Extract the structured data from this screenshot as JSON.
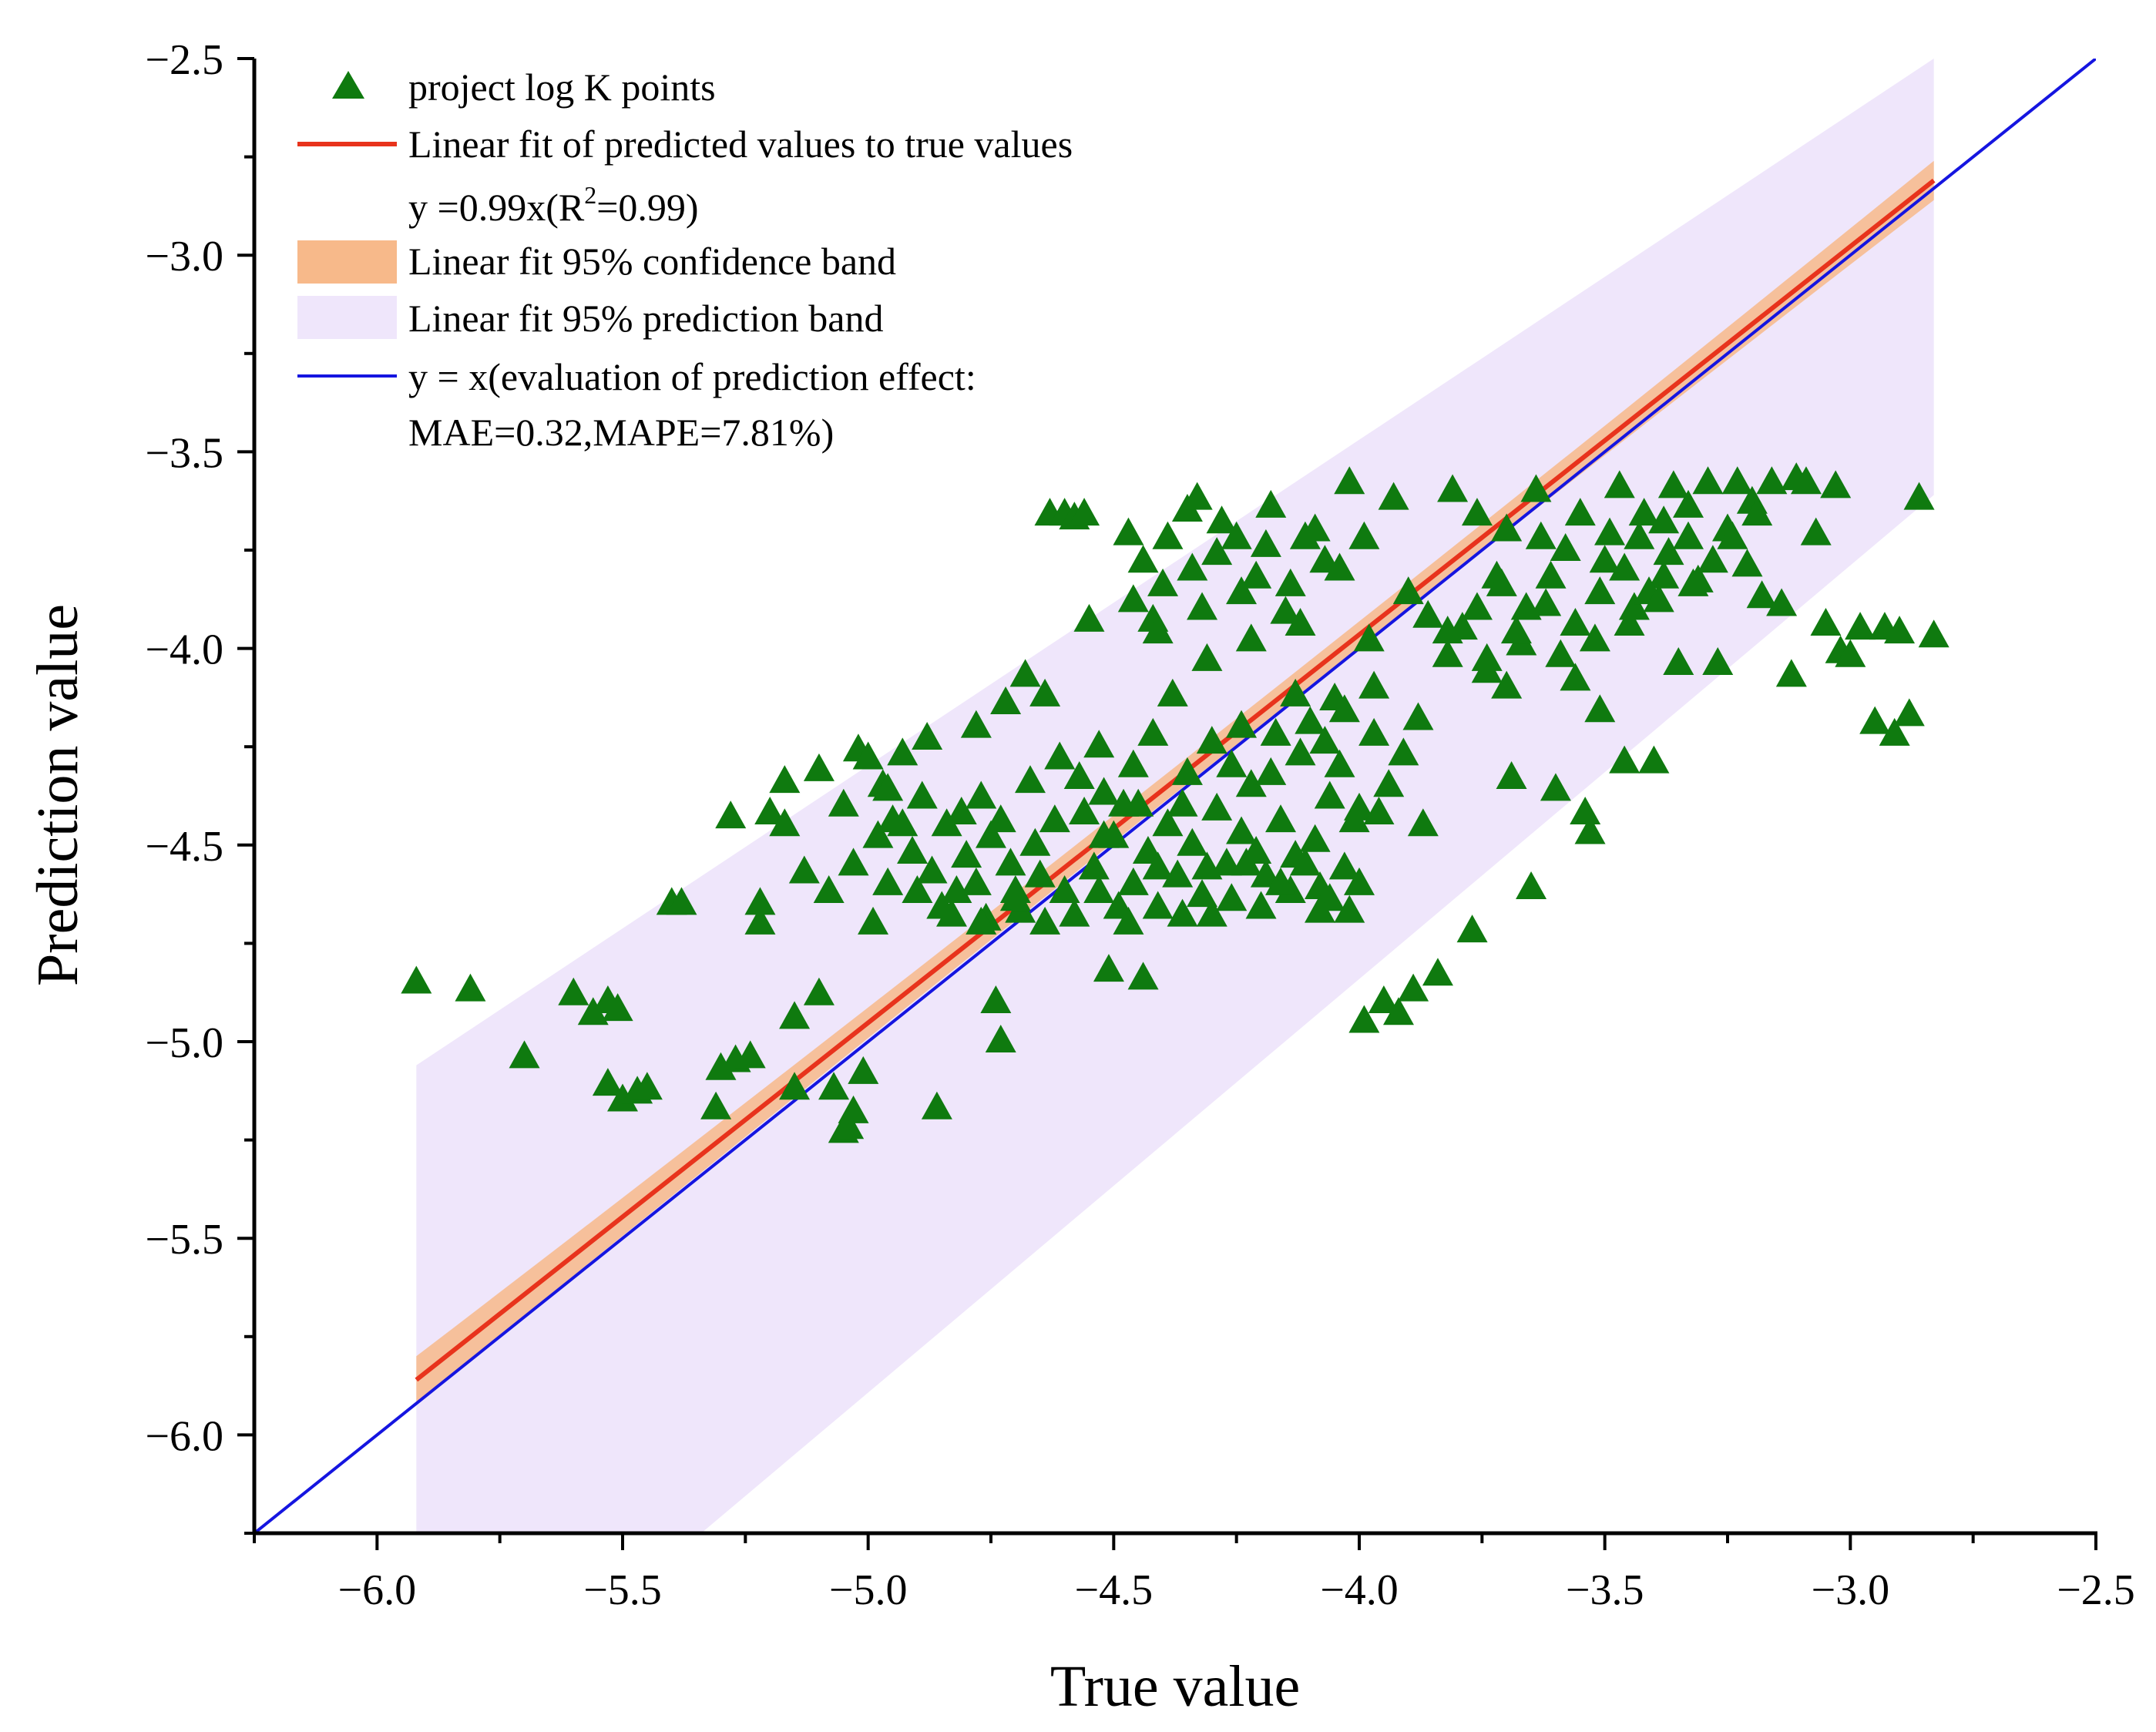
{
  "chart_data": {
    "type": "scatter",
    "xlabel": "True value",
    "ylabel": "Prediction value",
    "xlim": [
      -6.25,
      -2.5
    ],
    "ylim": [
      -6.25,
      -2.5
    ],
    "x_ticks": [
      -6.0,
      -5.5,
      -5.0,
      -4.5,
      -4.0,
      -3.5,
      -3.0,
      -2.5
    ],
    "y_ticks": [
      -2.5,
      -3.0,
      -3.5,
      -4.0,
      -4.5,
      -5.0,
      -5.5,
      -6.0
    ],
    "x_tick_labels": [
      "−6.0",
      "−5.5",
      "−5.0",
      "−4.5",
      "−4.0",
      "−3.5",
      "−3.0",
      "−2.5"
    ],
    "y_tick_labels": [
      "−2.5",
      "−3.0",
      "−3.5",
      "−4.0",
      "−4.5",
      "−5.0",
      "−5.5",
      "−6.0"
    ],
    "fit": {
      "slope": 0.99,
      "x_start": -5.92,
      "y_start": -5.86,
      "x_end": -2.83,
      "y_end": -2.81
    },
    "confidence_band_halfwidth": [
      0.06,
      0.012,
      0.05
    ],
    "prediction_band": {
      "x_range": [
        -5.92,
        -2.83
      ],
      "upper": [
        -5.06,
        -2.5
      ],
      "lower": [
        -6.86,
        -3.61
      ]
    },
    "identity_line": [
      [
        -6.25,
        -6.25
      ],
      [
        -2.5,
        -2.5
      ]
    ],
    "legend": {
      "points": "project log K points",
      "fit_line": "Linear fit of predicted values to true values",
      "fit_eq_prefix": "y =0.99x(R",
      "fit_eq_sup": "2",
      "fit_eq_suffix": "=0.99)",
      "confidence": "Linear fit 95% confidence band",
      "prediction": "Linear fit 95% prediction band",
      "identity": "y = x(evaluation of prediction effect:",
      "identity_line2": "MAE=0.32,MAPE=7.81%)"
    },
    "colors": {
      "points": "#0f7a0f",
      "fit_line": "#e8331c",
      "confidence": "#f7b98a",
      "prediction": "#efe6fb",
      "identity": "#1515e0"
    },
    "points": [
      [
        -5.92,
        -4.85
      ],
      [
        -5.81,
        -4.87
      ],
      [
        -5.7,
        -5.04
      ],
      [
        -5.6,
        -4.88
      ],
      [
        -5.56,
        -4.93
      ],
      [
        -5.53,
        -4.9
      ],
      [
        -5.51,
        -4.92
      ],
      [
        -5.53,
        -5.11
      ],
      [
        -5.5,
        -5.15
      ],
      [
        -5.47,
        -5.13
      ],
      [
        -5.45,
        -5.12
      ],
      [
        -5.4,
        -4.65
      ],
      [
        -5.38,
        -4.65
      ],
      [
        -5.3,
        -5.07
      ],
      [
        -5.27,
        -5.05
      ],
      [
        -5.24,
        -5.04
      ],
      [
        -5.31,
        -5.17
      ],
      [
        -5.28,
        -4.43
      ],
      [
        -5.22,
        -4.65
      ],
      [
        -5.22,
        -4.7
      ],
      [
        -5.2,
        -4.42
      ],
      [
        -5.17,
        -4.45
      ],
      [
        -5.17,
        -4.34
      ],
      [
        -5.15,
        -5.12
      ],
      [
        -5.15,
        -4.94
      ],
      [
        -5.13,
        -4.57
      ],
      [
        -5.1,
        -4.88
      ],
      [
        -5.1,
        -4.31
      ],
      [
        -5.08,
        -4.62
      ],
      [
        -5.07,
        -5.12
      ],
      [
        -5.05,
        -5.23
      ],
      [
        -5.04,
        -5.22
      ],
      [
        -5.03,
        -5.18
      ],
      [
        -5.02,
        -4.26
      ],
      [
        -5.0,
        -4.28
      ],
      [
        -5.01,
        -5.08
      ],
      [
        -4.99,
        -4.7
      ],
      [
        -4.97,
        -4.35
      ],
      [
        -4.95,
        -4.44
      ],
      [
        -4.93,
        -4.27
      ],
      [
        -4.9,
        -4.62
      ],
      [
        -4.88,
        -4.23
      ],
      [
        -4.86,
        -5.17
      ],
      [
        -4.83,
        -4.68
      ],
      [
        -4.81,
        -4.42
      ],
      [
        -4.78,
        -4.2
      ],
      [
        -4.76,
        -4.69
      ],
      [
        -4.74,
        -4.9
      ],
      [
        -4.73,
        -5.0
      ],
      [
        -4.72,
        -4.14
      ],
      [
        -4.7,
        -4.62
      ],
      [
        -4.68,
        -4.07
      ],
      [
        -4.66,
        -4.5
      ],
      [
        -4.64,
        -4.12
      ],
      [
        -4.63,
        -3.66
      ],
      [
        -4.6,
        -3.66
      ],
      [
        -4.58,
        -3.67
      ],
      [
        -4.56,
        -3.66
      ],
      [
        -4.55,
        -3.93
      ],
      [
        -4.53,
        -4.25
      ],
      [
        -4.52,
        -4.48
      ],
      [
        -4.51,
        -4.82
      ],
      [
        -4.49,
        -4.66
      ],
      [
        -4.47,
        -3.71
      ],
      [
        -4.45,
        -4.4
      ],
      [
        -4.44,
        -4.84
      ],
      [
        -4.42,
        -3.93
      ],
      [
        -4.4,
        -3.84
      ],
      [
        -4.38,
        -4.12
      ],
      [
        -4.36,
        -4.4
      ],
      [
        -4.35,
        -3.65
      ],
      [
        -4.33,
        -3.62
      ],
      [
        -4.31,
        -4.03
      ],
      [
        -4.3,
        -4.68
      ],
      [
        -4.28,
        -3.68
      ],
      [
        -4.26,
        -4.3
      ],
      [
        -4.25,
        -3.72
      ],
      [
        -4.23,
        -4.55
      ],
      [
        -4.21,
        -3.82
      ],
      [
        -4.2,
        -4.66
      ],
      [
        -4.18,
        -3.64
      ],
      [
        -4.17,
        -4.22
      ],
      [
        -4.15,
        -3.91
      ],
      [
        -4.13,
        -4.53
      ],
      [
        -4.11,
        -3.72
      ],
      [
        -4.1,
        -4.19
      ],
      [
        -4.08,
        -4.61
      ],
      [
        -4.07,
        -3.78
      ],
      [
        -4.05,
        -4.13
      ],
      [
        -4.03,
        -4.56
      ],
      [
        -4.02,
        -3.58
      ],
      [
        -4.0,
        -4.41
      ],
      [
        -3.99,
        -4.95
      ],
      [
        -3.98,
        -3.98
      ],
      [
        -3.96,
        -4.42
      ],
      [
        -3.95,
        -4.9
      ],
      [
        -3.93,
        -3.62
      ],
      [
        -3.92,
        -4.93
      ],
      [
        -3.9,
        -3.86
      ],
      [
        -3.89,
        -4.87
      ],
      [
        -3.87,
        -4.45
      ],
      [
        -3.86,
        -3.92
      ],
      [
        -3.84,
        -4.83
      ],
      [
        -3.82,
        -4.02
      ],
      [
        -3.81,
        -3.6
      ],
      [
        -3.79,
        -3.95
      ],
      [
        -3.77,
        -4.72
      ],
      [
        -3.76,
        -3.66
      ],
      [
        -3.74,
        -4.03
      ],
      [
        -3.72,
        -3.82
      ],
      [
        -3.7,
        -4.1
      ],
      [
        -3.69,
        -4.33
      ],
      [
        -3.67,
        -3.99
      ],
      [
        -3.65,
        -4.61
      ],
      [
        -3.64,
        -3.6
      ],
      [
        -3.62,
        -3.89
      ],
      [
        -3.6,
        -4.36
      ],
      [
        -3.58,
        -3.75
      ],
      [
        -3.56,
        -4.08
      ],
      [
        -3.54,
        -4.42
      ],
      [
        -3.53,
        -4.47
      ],
      [
        -3.51,
        -4.16
      ],
      [
        -3.49,
        -3.71
      ],
      [
        -3.47,
        -3.59
      ],
      [
        -3.46,
        -4.29
      ],
      [
        -3.44,
        -3.9
      ],
      [
        -3.42,
        -3.66
      ],
      [
        -3.4,
        -4.29
      ],
      [
        -3.38,
        -3.82
      ],
      [
        -3.36,
        -3.59
      ],
      [
        -3.35,
        -4.04
      ],
      [
        -3.33,
        -3.72
      ],
      [
        -3.31,
        -3.83
      ],
      [
        -3.29,
        -3.58
      ],
      [
        -3.27,
        -4.04
      ],
      [
        -3.25,
        -3.7
      ],
      [
        -3.23,
        -3.58
      ],
      [
        -3.21,
        -3.79
      ],
      [
        -3.2,
        -3.63
      ],
      [
        -3.18,
        -3.87
      ],
      [
        -3.16,
        -3.58
      ],
      [
        -3.14,
        -3.89
      ],
      [
        -3.12,
        -4.07
      ],
      [
        -3.11,
        -3.57
      ],
      [
        -3.09,
        -3.58
      ],
      [
        -3.07,
        -3.71
      ],
      [
        -3.05,
        -3.94
      ],
      [
        -3.03,
        -3.59
      ],
      [
        -3.02,
        -4.01
      ],
      [
        -3.0,
        -4.02
      ],
      [
        -2.98,
        -3.95
      ],
      [
        -2.95,
        -4.19
      ],
      [
        -2.93,
        -3.95
      ],
      [
        -2.91,
        -4.22
      ],
      [
        -2.9,
        -3.96
      ],
      [
        -2.88,
        -4.17
      ],
      [
        -2.86,
        -3.62
      ],
      [
        -2.83,
        -3.97
      ],
      [
        -5.05,
        -4.4
      ],
      [
        -5.03,
        -4.55
      ],
      [
        -4.98,
        -4.48
      ],
      [
        -4.96,
        -4.6
      ],
      [
        -4.91,
        -4.52
      ],
      [
        -4.87,
        -4.57
      ],
      [
        -4.85,
        -4.66
      ],
      [
        -4.8,
        -4.53
      ],
      [
        -4.78,
        -4.6
      ],
      [
        -4.75,
        -4.48
      ],
      [
        -4.71,
        -4.55
      ],
      [
        -4.69,
        -4.67
      ],
      [
        -4.65,
        -4.58
      ],
      [
        -4.62,
        -4.44
      ],
      [
        -4.6,
        -4.62
      ],
      [
        -4.57,
        -4.33
      ],
      [
        -4.54,
        -4.56
      ],
      [
        -4.5,
        -4.48
      ],
      [
        -4.48,
        -4.4
      ],
      [
        -4.46,
        -4.6
      ],
      [
        -4.43,
        -4.52
      ],
      [
        -4.41,
        -4.66
      ],
      [
        -4.39,
        -4.45
      ],
      [
        -4.37,
        -4.58
      ],
      [
        -4.34,
        -4.5
      ],
      [
        -4.32,
        -4.63
      ],
      [
        -4.29,
        -4.41
      ],
      [
        -4.27,
        -4.55
      ],
      [
        -4.24,
        -4.47
      ],
      [
        -4.22,
        -4.35
      ],
      [
        -4.19,
        -4.58
      ],
      [
        -4.16,
        -4.44
      ],
      [
        -4.14,
        -4.62
      ],
      [
        -4.12,
        -4.27
      ],
      [
        -4.09,
        -4.49
      ],
      [
        -4.06,
        -4.38
      ],
      [
        -4.04,
        -4.3
      ],
      [
        -4.01,
        -4.44
      ],
      [
        -3.97,
        -4.22
      ],
      [
        -3.94,
        -4.35
      ],
      [
        -3.91,
        -4.27
      ],
      [
        -3.88,
        -4.18
      ],
      [
        -4.96,
        -4.36
      ],
      [
        -4.93,
        -4.45
      ],
      [
        -4.89,
        -4.38
      ],
      [
        -4.84,
        -4.45
      ],
      [
        -4.77,
        -4.38
      ],
      [
        -4.73,
        -4.44
      ],
      [
        -4.67,
        -4.34
      ],
      [
        -4.61,
        -4.28
      ],
      [
        -4.56,
        -4.42
      ],
      [
        -4.52,
        -4.37
      ],
      [
        -4.46,
        -4.3
      ],
      [
        -4.42,
        -4.22
      ],
      [
        -4.35,
        -4.32
      ],
      [
        -4.3,
        -4.24
      ],
      [
        -4.24,
        -4.2
      ],
      [
        -4.18,
        -4.32
      ],
      [
        -4.13,
        -4.12
      ],
      [
        -4.07,
        -4.24
      ],
      [
        -4.03,
        -4.16
      ],
      [
        -3.97,
        -4.1
      ],
      [
        -4.82,
        -4.62
      ],
      [
        -4.77,
        -4.7
      ],
      [
        -4.7,
        -4.64
      ],
      [
        -4.64,
        -4.7
      ],
      [
        -4.58,
        -4.68
      ],
      [
        -4.53,
        -4.62
      ],
      [
        -4.47,
        -4.7
      ],
      [
        -4.41,
        -4.56
      ],
      [
        -4.36,
        -4.68
      ],
      [
        -4.31,
        -4.56
      ],
      [
        -4.26,
        -4.64
      ],
      [
        -4.21,
        -4.52
      ],
      [
        -4.16,
        -4.6
      ],
      [
        -4.11,
        -4.55
      ],
      [
        -4.06,
        -4.64
      ],
      [
        -4.0,
        -4.6
      ],
      [
        -4.08,
        -4.67
      ],
      [
        -4.02,
        -4.67
      ],
      [
        -4.44,
        -3.78
      ],
      [
        -4.39,
        -3.72
      ],
      [
        -4.34,
        -3.8
      ],
      [
        -4.29,
        -3.76
      ],
      [
        -4.24,
        -3.86
      ],
      [
        -4.19,
        -3.74
      ],
      [
        -4.14,
        -3.84
      ],
      [
        -4.09,
        -3.7
      ],
      [
        -4.04,
        -3.8
      ],
      [
        -3.99,
        -3.72
      ],
      [
        -4.46,
        -3.88
      ],
      [
        -4.41,
        -3.96
      ],
      [
        -4.32,
        -3.9
      ],
      [
        -4.22,
        -3.98
      ],
      [
        -4.12,
        -3.94
      ],
      [
        -3.76,
        -3.9
      ],
      [
        -3.71,
        -3.84
      ],
      [
        -3.66,
        -3.9
      ],
      [
        -3.61,
        -3.82
      ],
      [
        -3.56,
        -3.94
      ],
      [
        -3.51,
        -3.86
      ],
      [
        -3.46,
        -3.8
      ],
      [
        -3.41,
        -3.86
      ],
      [
        -3.37,
        -3.76
      ],
      [
        -3.32,
        -3.84
      ],
      [
        -3.28,
        -3.78
      ],
      [
        -3.24,
        -3.72
      ],
      [
        -3.19,
        -3.66
      ],
      [
        -3.7,
        -3.7
      ],
      [
        -3.63,
        -3.72
      ],
      [
        -3.55,
        -3.66
      ],
      [
        -3.5,
        -3.78
      ],
      [
        -3.43,
        -3.72
      ],
      [
        -3.38,
        -3.68
      ],
      [
        -3.33,
        -3.64
      ],
      [
        -3.82,
        -3.96
      ],
      [
        -3.74,
        -4.06
      ],
      [
        -3.68,
        -3.96
      ],
      [
        -3.59,
        -4.02
      ],
      [
        -3.52,
        -3.98
      ],
      [
        -3.45,
        -3.94
      ],
      [
        -3.39,
        -3.88
      ]
    ]
  }
}
